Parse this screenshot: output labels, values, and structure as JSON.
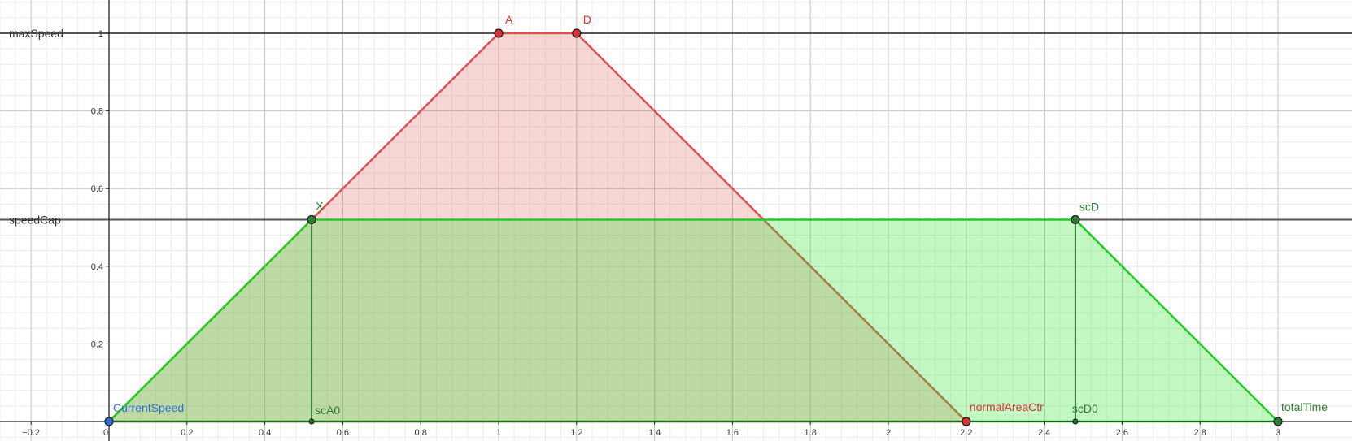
{
  "chart_data": {
    "type": "area",
    "xlim": [
      -0.28,
      3.03
    ],
    "ylim": [
      -0.05,
      1.09
    ],
    "grid": true,
    "x_ticks": [
      -0.2,
      0,
      0.2,
      0.4,
      0.6,
      0.8,
      1,
      1.2,
      1.4,
      1.6,
      1.8,
      2,
      2.2,
      2.4,
      2.6,
      2.8,
      3
    ],
    "x_tick_labels": [
      "−0.2",
      "0",
      "0.2",
      "0.4",
      "0.6",
      "0.8",
      "1",
      "1.2",
      "1.4",
      "1.6",
      "1.8",
      "2",
      "2.2",
      "2.4",
      "2.6",
      "2.8",
      "3"
    ],
    "y_ticks": [
      0.2,
      0.4,
      0.6,
      0.8,
      1
    ],
    "y_tick_labels": [
      "0.2",
      "0.4",
      "0.6",
      "0.8",
      "1"
    ],
    "horizontal_lines": [
      {
        "name": "maxSpeed",
        "y": 1
      },
      {
        "name": "speedCap",
        "y": 0.52
      }
    ],
    "polygons": [
      {
        "series": "normal",
        "color": "#d9534f",
        "fill": "rgba(220,70,70,0.22)",
        "points": [
          [
            0,
            0
          ],
          [
            1,
            1
          ],
          [
            1.2,
            1
          ],
          [
            2.2,
            0
          ]
        ]
      },
      {
        "series": "capped",
        "color": "#22cc22",
        "fill": "rgba(40,230,40,0.28)",
        "points": [
          [
            0,
            0
          ],
          [
            0.52,
            0.52
          ],
          [
            2.48,
            0.52
          ],
          [
            3,
            0
          ]
        ]
      }
    ],
    "segments": [
      {
        "from": [
          0.52,
          0.52
        ],
        "to": [
          0.52,
          0
        ],
        "color": "#2e7d32"
      },
      {
        "from": [
          2.48,
          0.52
        ],
        "to": [
          2.48,
          0
        ],
        "color": "#2e7d32"
      }
    ],
    "points": [
      {
        "name": "A",
        "x": 1,
        "y": 1,
        "color": "#d63333",
        "size": "big"
      },
      {
        "name": "D",
        "x": 1.2,
        "y": 1,
        "color": "#d63333",
        "size": "big"
      },
      {
        "name": "X",
        "x": 0.52,
        "y": 0.52,
        "color": "#2e7d32",
        "size": "big"
      },
      {
        "name": "scD",
        "x": 2.48,
        "y": 0.52,
        "color": "#2e7d32",
        "size": "big"
      },
      {
        "name": "CurrentSpeed",
        "x": 0,
        "y": 0,
        "color": "#2f6fd6",
        "size": "big"
      },
      {
        "name": "scA0",
        "x": 0.52,
        "y": 0,
        "color": "#2e7d32",
        "size": "small"
      },
      {
        "name": "scD0",
        "x": 2.48,
        "y": 0,
        "color": "#2e7d32",
        "size": "small"
      },
      {
        "name": "normalAreaCtr",
        "x": 2.2,
        "y": 0,
        "color": "#d63333",
        "size": "big"
      },
      {
        "name": "totalTime",
        "x": 3,
        "y": 0,
        "color": "#2e7d32",
        "size": "big"
      }
    ]
  }
}
